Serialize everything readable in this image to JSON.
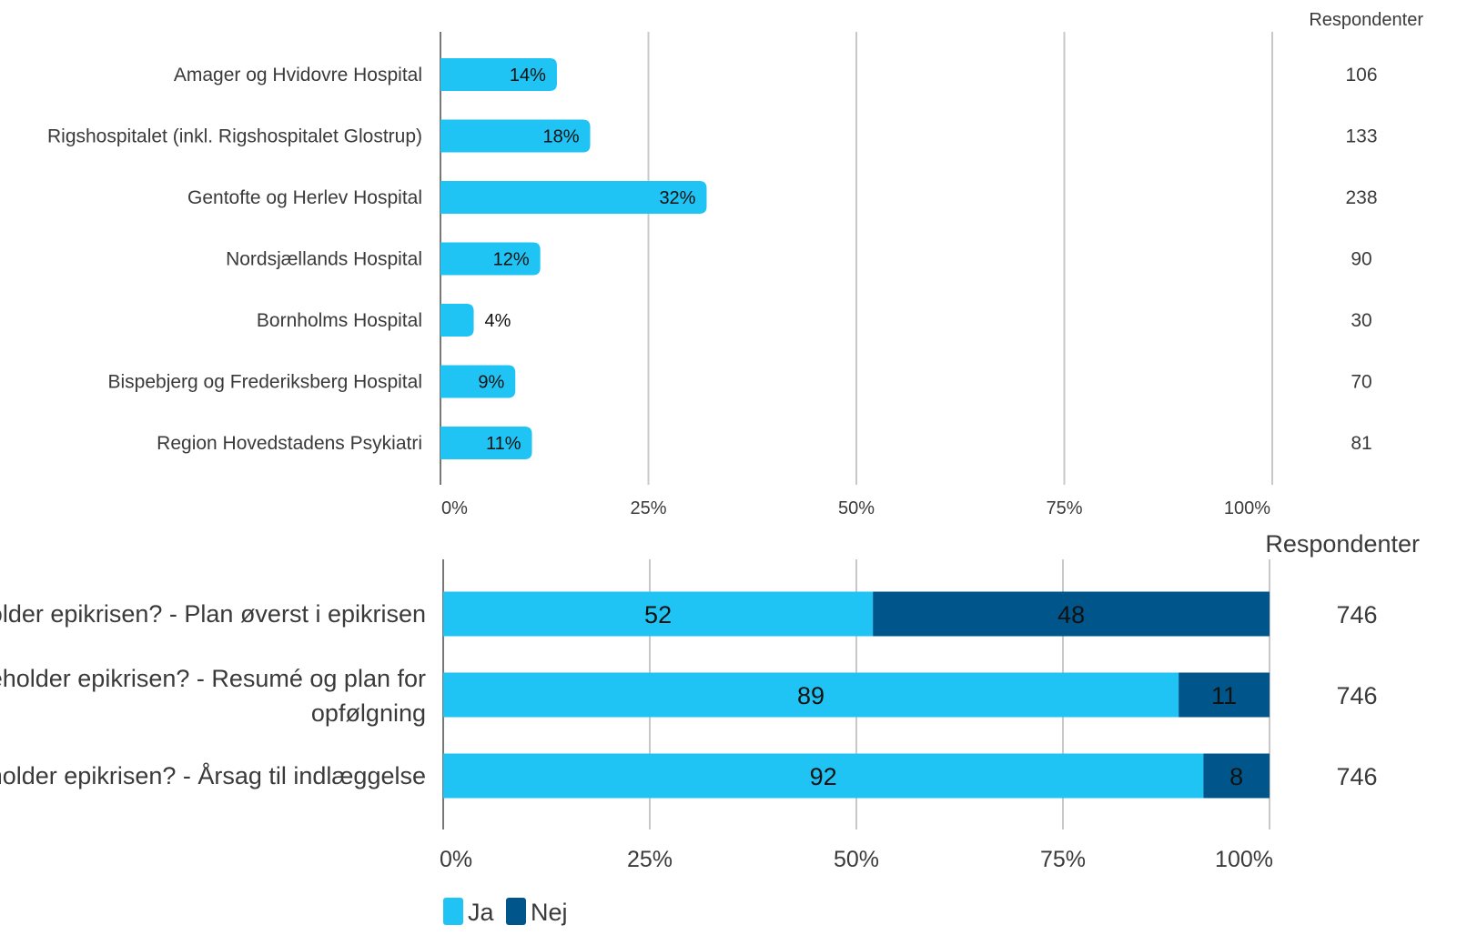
{
  "chart_data": [
    {
      "type": "bar",
      "orientation": "horizontal",
      "categories": [
        "Amager og Hvidovre Hospital",
        "Rigshospitalet (inkl. Rigshospitalet Glostrup)",
        "Gentofte og Herlev Hospital",
        "Nordsjællands Hospital",
        "Bornholms Hospital",
        "Bispebjerg og Frederiksberg Hospital",
        "Region Hovedstadens Psykiatri"
      ],
      "values": [
        14,
        18,
        32,
        12,
        4,
        9,
        11
      ],
      "value_labels": [
        "14%",
        "18%",
        "32%",
        "12%",
        "4%",
        "9%",
        "11%"
      ],
      "respondents_header": "Respondenter",
      "respondents": [
        "106",
        "133",
        "238",
        "90",
        "30",
        "70",
        "81"
      ],
      "xlim": [
        0,
        100
      ],
      "xticks": [
        "0%",
        "25%",
        "50%",
        "75%",
        "100%"
      ],
      "grid": true,
      "colors": {
        "bar": "#20C4F4"
      }
    },
    {
      "type": "bar",
      "orientation": "horizontal",
      "stacked": true,
      "categories": [
        "Indeholder epikrisen? - Plan øverst i epikrisen",
        "Indeholder epikrisen? - Resumé og plan for opfølgning",
        "Indeholder epikrisen? - Årsag til indlæggelse"
      ],
      "category_lines": [
        [
          "Indeholder epikrisen? - Plan øverst i epikrisen"
        ],
        [
          "Indeholder epikrisen? - Resumé og plan for",
          "opfølgning"
        ],
        [
          "Indeholder epikrisen? - Årsag til indlæggelse"
        ]
      ],
      "series": [
        {
          "name": "Ja",
          "values": [
            52,
            89,
            92
          ],
          "labels": [
            "52",
            "89",
            "92"
          ],
          "color": "#20C4F4"
        },
        {
          "name": "Nej",
          "values": [
            48,
            11,
            8
          ],
          "labels": [
            "48",
            "11",
            "8"
          ],
          "color": "#00568A"
        }
      ],
      "respondents_header": "Respondenter",
      "respondents": [
        "746",
        "746",
        "746"
      ],
      "xlim": [
        0,
        100
      ],
      "xticks": [
        "0%",
        "25%",
        "50%",
        "75%",
        "100%"
      ],
      "grid": true,
      "legend_position": "bottom-left"
    }
  ]
}
